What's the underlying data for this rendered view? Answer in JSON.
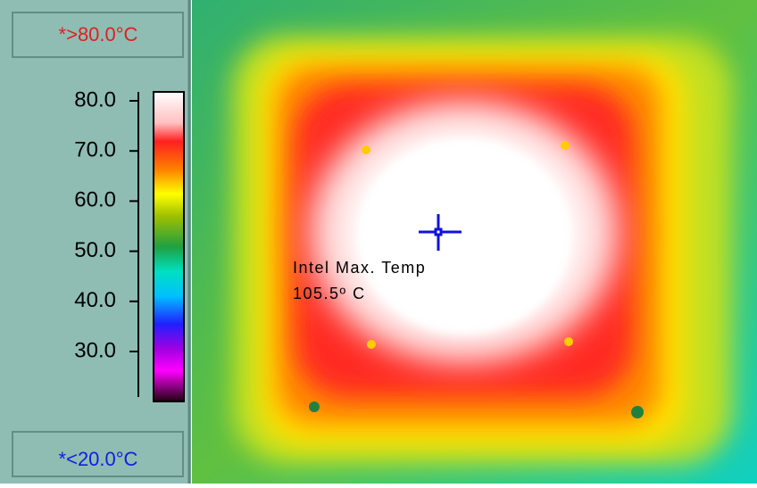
{
  "scale": {
    "max_label": "*>80.0°C",
    "min_label": "*<20.0°C",
    "ticks": [
      "80.0",
      "70.0",
      "60.0",
      "50.0",
      "40.0",
      "30.0"
    ]
  },
  "annotation": {
    "title": "Intel Max. Temp",
    "value": "105.5º C"
  }
}
